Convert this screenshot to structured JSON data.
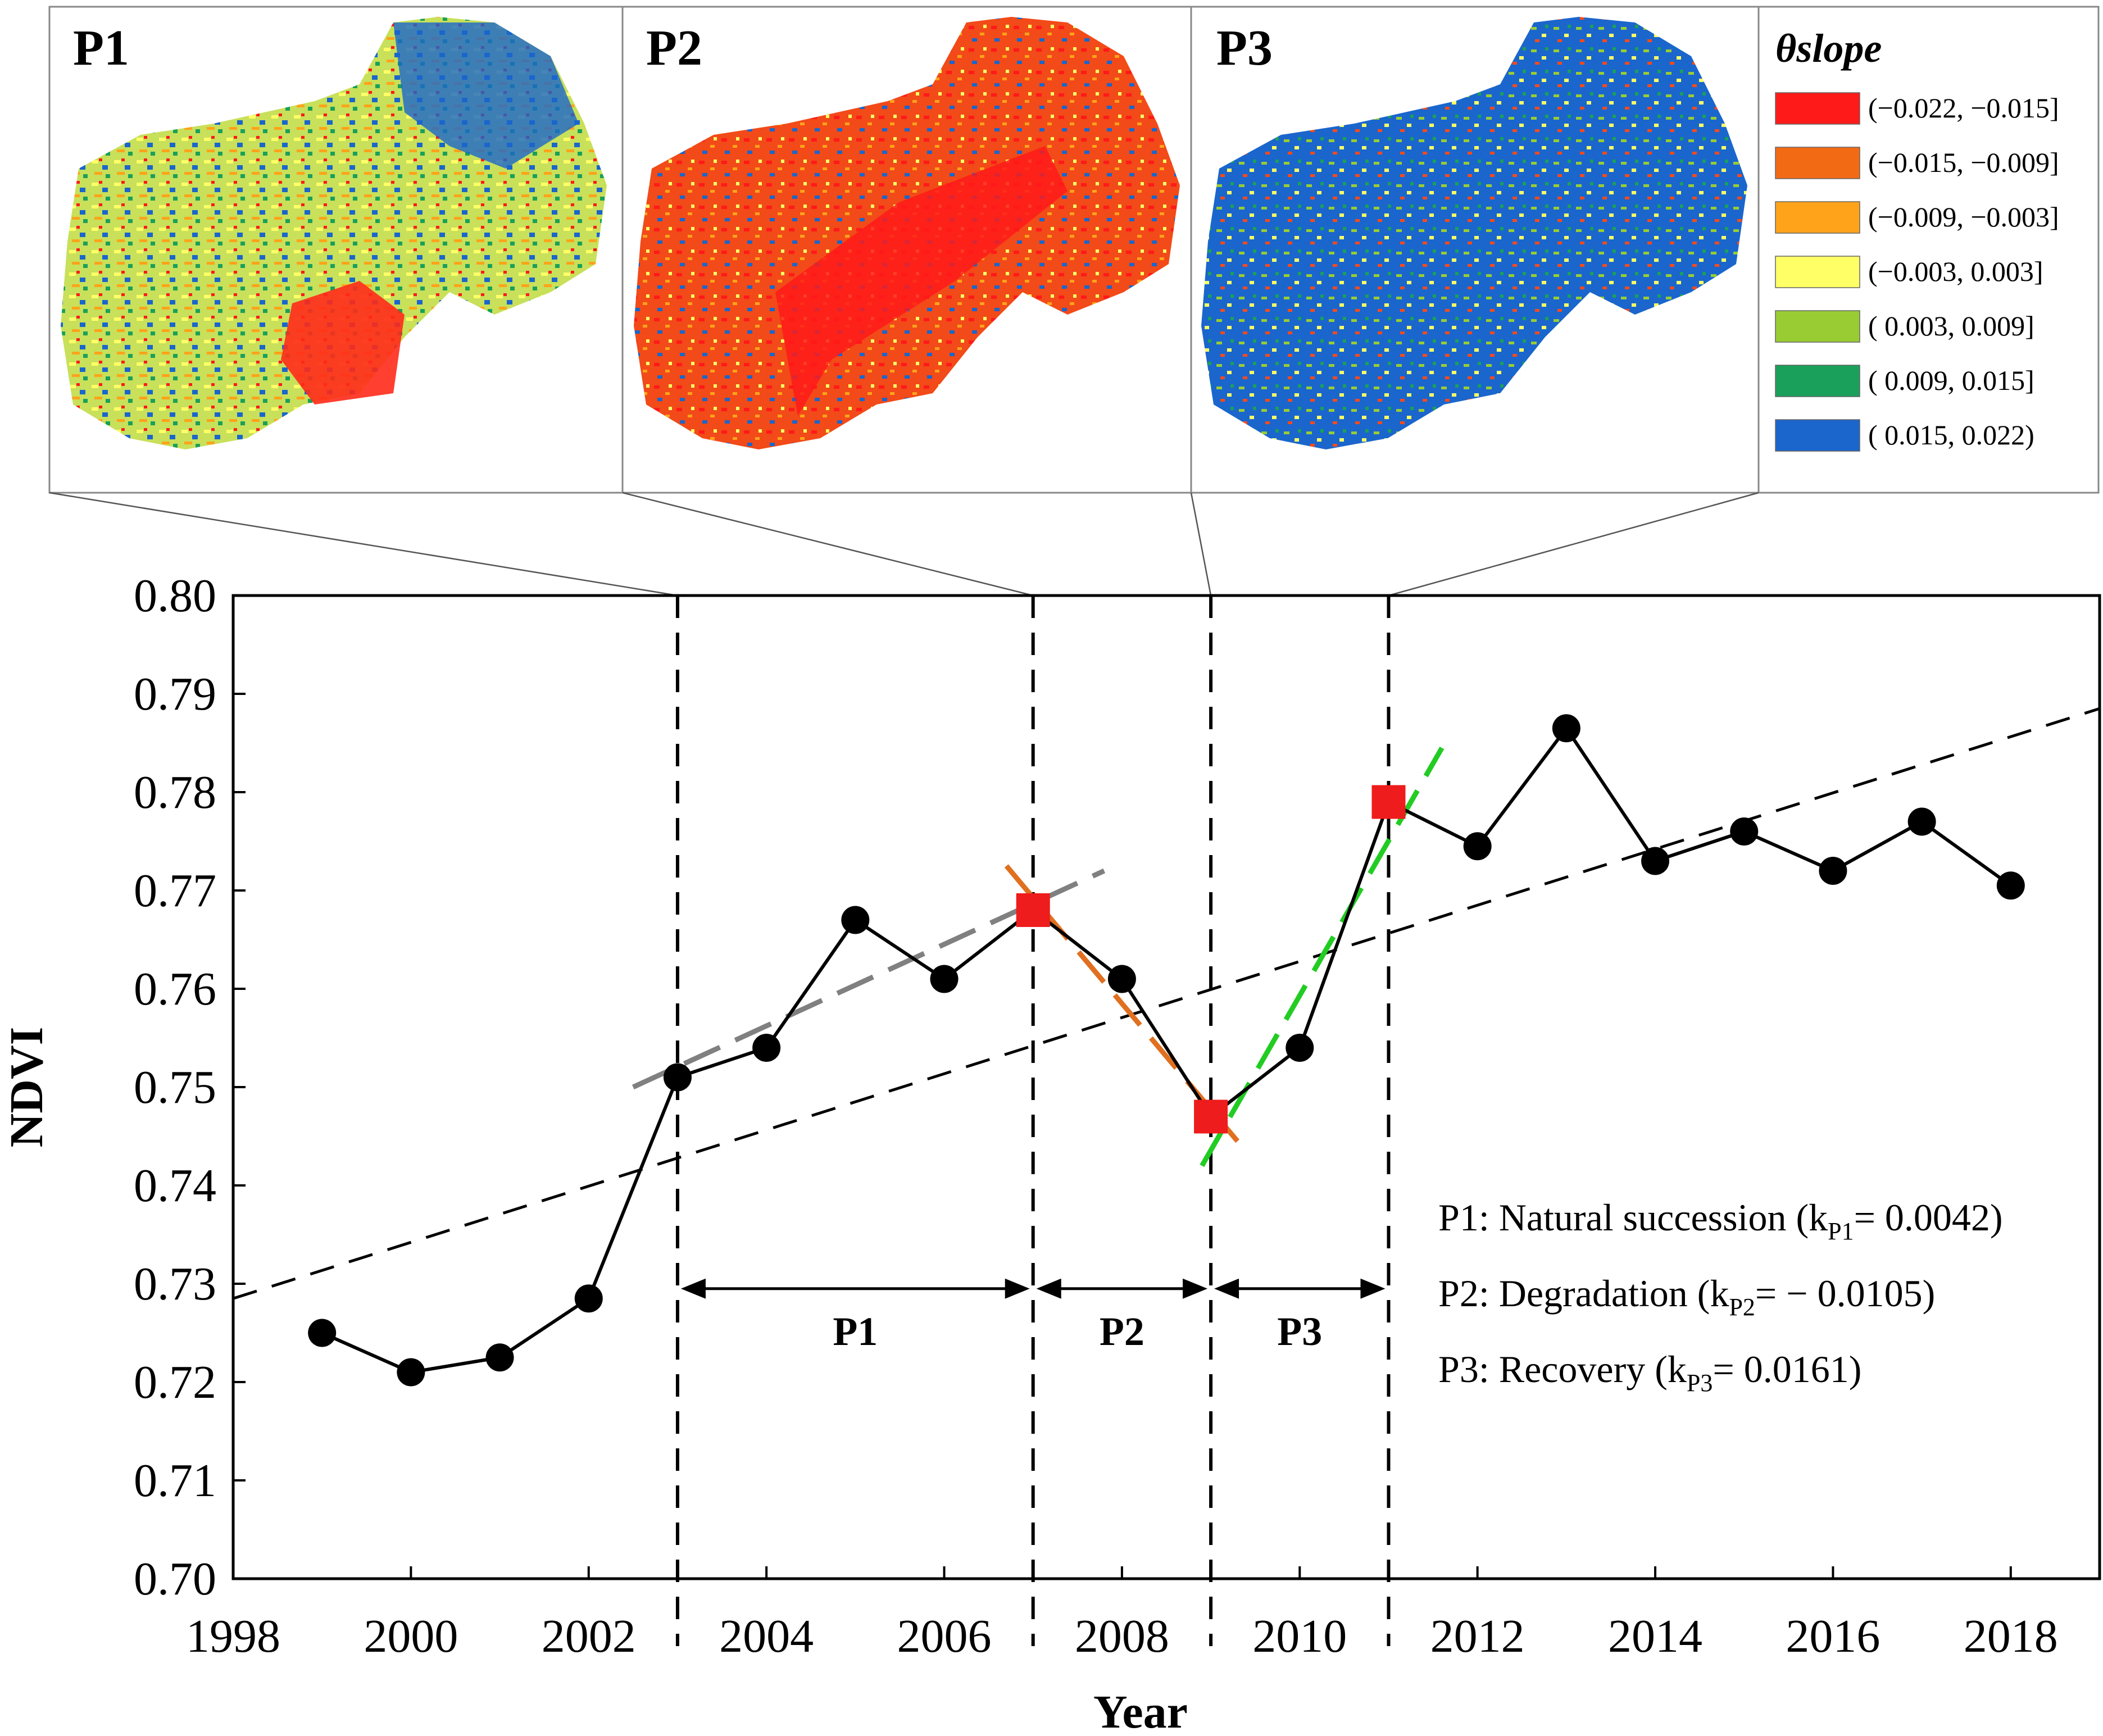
{
  "chart_data": {
    "type": "line",
    "xlabel": "Year",
    "ylabel": "NDVI",
    "xlim": [
      1998,
      2019
    ],
    "ylim": [
      0.7,
      0.8
    ],
    "x_ticks": [
      "1998",
      "2000",
      "2002",
      "2004",
      "2006",
      "2008",
      "2010",
      "2012",
      "2014",
      "2016",
      "2018"
    ],
    "y_ticks": [
      "0.70",
      "0.71",
      "0.72",
      "0.73",
      "0.74",
      "0.75",
      "0.76",
      "0.77",
      "0.78",
      "0.79",
      "0.80"
    ],
    "series": [
      {
        "name": "NDVI",
        "x": [
          1999,
          2000,
          2001,
          2002,
          2003,
          2004,
          2005,
          2006,
          2007,
          2008,
          2009,
          2010,
          2011,
          2012,
          2013,
          2014,
          2015,
          2016,
          2017,
          2018
        ],
        "values": [
          0.725,
          0.721,
          0.7225,
          0.7285,
          0.751,
          0.754,
          0.767,
          0.761,
          0.768,
          0.761,
          0.747,
          0.754,
          0.779,
          0.7745,
          0.7865,
          0.773,
          0.776,
          0.772,
          0.777,
          0.7705
        ]
      }
    ],
    "breakpoints": {
      "x": [
        2007,
        2009,
        2011
      ],
      "values": [
        0.768,
        0.747,
        0.779
      ],
      "color": "#ee1c1c"
    },
    "overall_trend": {
      "x": [
        1998,
        2019
      ],
      "values": [
        0.7285,
        0.7885
      ],
      "color": "#000000"
    },
    "period_trends": [
      {
        "name": "P1",
        "x": [
          2002.5,
          2007.8
        ],
        "values": [
          0.75,
          0.772
        ],
        "color": "#808080"
      },
      {
        "name": "P2",
        "x": [
          2006.7,
          2009.3
        ],
        "values": [
          0.7725,
          0.7445
        ],
        "color": "#e07020"
      },
      {
        "name": "P3",
        "x": [
          2008.9,
          2011.6
        ],
        "values": [
          0.742,
          0.7845
        ],
        "color": "#22cc22"
      }
    ],
    "dividers": [
      2003,
      2007,
      2009,
      2011
    ],
    "periods": [
      {
        "label": "P1",
        "start": 2003,
        "end": 2007
      },
      {
        "label": "P2",
        "start": 2007,
        "end": 2009
      },
      {
        "label": "P3",
        "start": 2009,
        "end": 2011
      }
    ],
    "annotations": [
      {
        "text": "P1: Natural succession (k",
        "sub": "P1",
        "suffix": "= 0.0042)"
      },
      {
        "text": "P2: Degradation (k",
        "sub": "P2",
        "suffix": "= − 0.0105)"
      },
      {
        "text": "P3: Recovery (k",
        "sub": "P3",
        "suffix": "= 0.0161)"
      }
    ]
  },
  "maps": {
    "panels": [
      {
        "title": "P1",
        "icon": "p1-slope-map"
      },
      {
        "title": "P2",
        "icon": "p2-slope-map"
      },
      {
        "title": "P3",
        "icon": "p3-slope-map"
      }
    ],
    "legend_title": "θslope",
    "legend": [
      {
        "label": "(−0.022, −0.015]",
        "color": "#ff1a1a"
      },
      {
        "label": "(−0.015, −0.009]",
        "color": "#f26a14"
      },
      {
        "label": "(−0.009, −0.003]",
        "color": "#ffa31a"
      },
      {
        "label": "(−0.003, 0.003]",
        "color": "#ffff66"
      },
      {
        "label": "( 0.003, 0.009]",
        "color": "#99cc33"
      },
      {
        "label": "( 0.009, 0.015]",
        "color": "#1aa05a"
      },
      {
        "label": "( 0.015, 0.022)",
        "color": "#1a66cc"
      }
    ]
  }
}
